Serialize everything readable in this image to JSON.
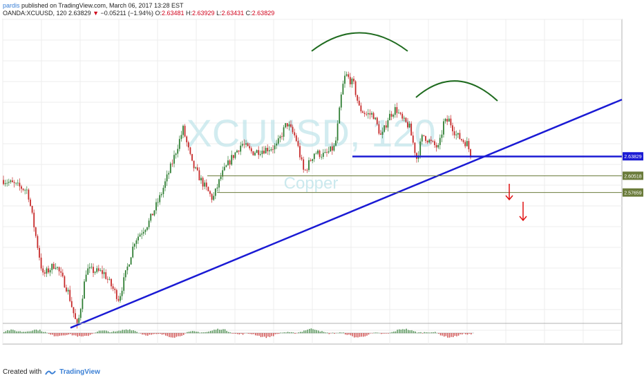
{
  "header": {
    "author": "pardis",
    "published_text": "published on TradingView.com, March 06, 2017 13:28 EST",
    "symbol": "OANDA:XCUUSD, 120",
    "last": "2.63829",
    "change": "−0.05211 (−1.94%)",
    "o_label": "O:",
    "o_value": "2.63481",
    "h_label": "H:",
    "h_value": "2.63929",
    "l_label": "L:",
    "l_value": "2.63431",
    "c_label": "C:",
    "c_value": "2.63829"
  },
  "chart_data": {
    "type": "candlestick",
    "symbol": "XCUUSD",
    "interval": "120",
    "watermark_symbol": "XCUUSD, 120",
    "watermark_name": "Copper",
    "ylim": [
      2.33,
      2.86
    ],
    "grid": true,
    "colors": {
      "up": "#2e7d32",
      "down": "#c62828",
      "trend": "#1a1ad4",
      "arc": "#1f6b1f",
      "arrow": "#e01010",
      "level_line": "#6a7b3a"
    },
    "price_labels": [
      {
        "text": "2.63829",
        "value": 2.63829,
        "color": "#1a1ad4"
      },
      {
        "text": "2.60518",
        "value": 2.60518,
        "color": "#6a7b3a"
      },
      {
        "text": "2.57659",
        "value": 2.57659,
        "color": "#6a7b3a"
      }
    ],
    "annotations": {
      "trendline": [
        {
          "x": 102,
          "y": 2.346
        },
        {
          "x": 900,
          "y": 2.735
        }
      ],
      "neckline_value": 2.638,
      "level1_value": 2.605,
      "level2_value": 2.5766,
      "head_arc": "green arc over left peak",
      "shoulder_arc": "green arc over right shoulder",
      "arrows": "two red down arrows"
    },
    "path_points": [
      [
        5,
        2.598
      ],
      [
        40,
        2.58
      ],
      [
        62,
        2.435
      ],
      [
        80,
        2.455
      ],
      [
        98,
        2.41
      ],
      [
        112,
        2.345
      ],
      [
        125,
        2.445
      ],
      [
        150,
        2.44
      ],
      [
        172,
        2.395
      ],
      [
        195,
        2.495
      ],
      [
        215,
        2.525
      ],
      [
        232,
        2.57
      ],
      [
        250,
        2.63
      ],
      [
        265,
        2.685
      ],
      [
        278,
        2.625
      ],
      [
        292,
        2.595
      ],
      [
        308,
        2.565
      ],
      [
        320,
        2.605
      ],
      [
        335,
        2.635
      ],
      [
        350,
        2.66
      ],
      [
        365,
        2.645
      ],
      [
        382,
        2.65
      ],
      [
        400,
        2.655
      ],
      [
        415,
        2.695
      ],
      [
        428,
        2.67
      ],
      [
        440,
        2.61
      ],
      [
        455,
        2.645
      ],
      [
        470,
        2.64
      ],
      [
        485,
        2.655
      ],
      [
        495,
        2.752
      ],
      [
        500,
        2.778
      ],
      [
        512,
        2.76
      ],
      [
        520,
        2.72
      ],
      [
        530,
        2.71
      ],
      [
        540,
        2.71
      ],
      [
        552,
        2.67
      ],
      [
        562,
        2.705
      ],
      [
        573,
        2.72
      ],
      [
        582,
        2.7
      ],
      [
        592,
        2.69
      ],
      [
        603,
        2.635
      ],
      [
        612,
        2.675
      ],
      [
        625,
        2.66
      ],
      [
        635,
        2.652
      ],
      [
        642,
        2.695
      ],
      [
        650,
        2.7
      ],
      [
        660,
        2.675
      ],
      [
        670,
        2.665
      ],
      [
        676,
        2.66
      ],
      [
        682,
        2.638
      ]
    ],
    "oscillator": "histogram panel below price"
  },
  "footer": {
    "created_with": "Created with",
    "brand": "TradingView"
  }
}
